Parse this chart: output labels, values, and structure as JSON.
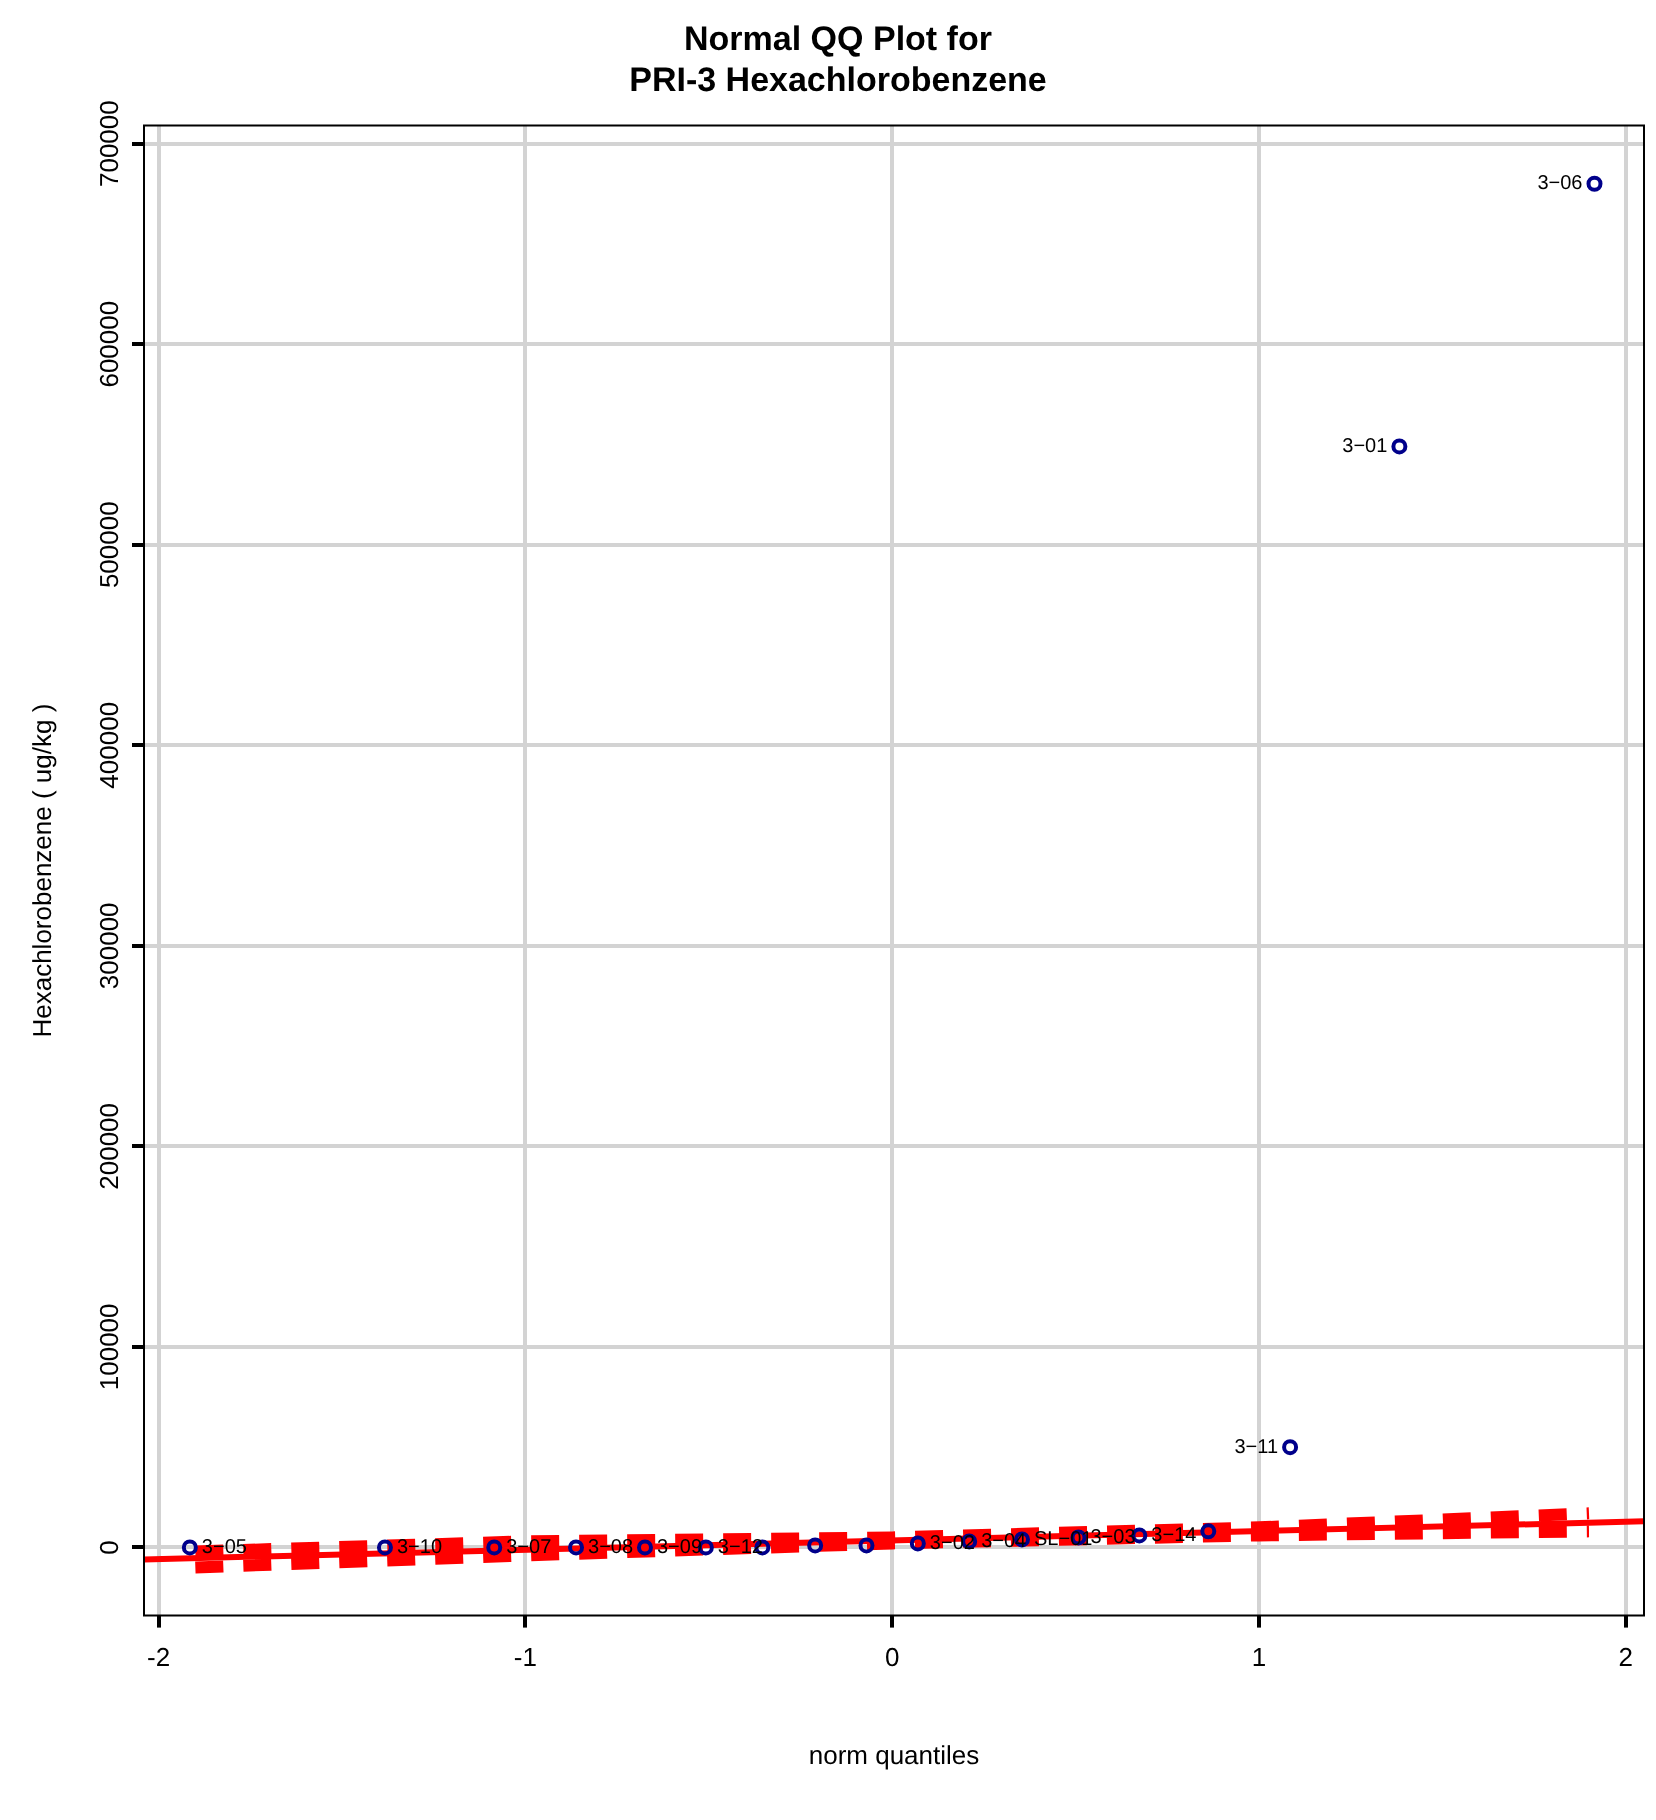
{
  "chart_data": {
    "type": "scatter",
    "title": "Normal QQ Plot for\nPRI-3 Hexachlorobenzene",
    "xlabel": "norm quantiles",
    "ylabel": "Hexachlorobenzene ( ug/kg )",
    "xlim": [
      -2.04,
      2.05
    ],
    "xticks": [
      -2,
      -1,
      0,
      1,
      2
    ],
    "ylim": [
      -34000,
      709000
    ],
    "yticks": [
      0,
      100000,
      200000,
      300000,
      400000,
      500000,
      600000,
      700000
    ],
    "grid": true,
    "legend": false,
    "series": [
      {
        "type": "scatter",
        "color": "#00008b",
        "marker": "circle",
        "x": [
          -1.915,
          -1.383,
          -1.085,
          -0.862,
          -0.674,
          -0.508,
          -0.354,
          -0.21,
          -0.07,
          0.07,
          0.21,
          0.354,
          0.508,
          0.674,
          0.862,
          1.085,
          1.383,
          1.915
        ],
        "values": [
          0,
          0,
          0,
          0,
          0,
          0,
          0,
          1000,
          1000,
          2000,
          3000,
          4000,
          5000,
          6000,
          8000,
          50000,
          549000,
          680000
        ]
      },
      {
        "type": "line",
        "color": "#ff0000",
        "line_style": "solid",
        "marker": "none",
        "x": [
          -2.04,
          2.05
        ],
        "values": [
          -6000,
          13000
        ]
      },
      {
        "type": "line",
        "color": "#ff0000",
        "line_style": "dashed",
        "marker": "none",
        "x": [
          -1.9,
          -1,
          0,
          1,
          1.9
        ],
        "values": [
          -2000,
          3000,
          5000,
          10000,
          17000
        ]
      },
      {
        "type": "line",
        "color": "#ff0000",
        "line_style": "dashed",
        "marker": "none",
        "x": [
          -1.9,
          -1,
          0,
          1,
          1.9
        ],
        "values": [
          -10000,
          -4000,
          2000,
          6000,
          8000
        ]
      }
    ],
    "annotations": [
      {
        "text": "3−05",
        "x": -1.915,
        "y": 0
      },
      {
        "text": "3−10",
        "x": -1.383,
        "y": 0
      },
      {
        "text": "3−07",
        "x": -1.085,
        "y": 0
      },
      {
        "text": "3−08",
        "x": -0.862,
        "y": 0
      },
      {
        "text": "3−09",
        "x": -0.674,
        "y": 0
      },
      {
        "text": "3−12",
        "x": -0.508,
        "y": 0
      },
      {
        "text": "3−02",
        "x": 0.07,
        "y": 2000
      },
      {
        "text": "3−04",
        "x": 0.21,
        "y": 3000
      },
      {
        "text": "SL−01",
        "x": 0.354,
        "y": 4000
      },
      {
        "text": "3−03",
        "x": 0.508,
        "y": 5000
      },
      {
        "text": "3−14",
        "x": 0.674,
        "y": 6000
      },
      {
        "text": "3−11",
        "x": 1.085,
        "y": 50000
      },
      {
        "text": "3−01",
        "x": 1.383,
        "y": 549000
      },
      {
        "text": "3−06",
        "x": 1.915,
        "y": 680000
      }
    ]
  }
}
